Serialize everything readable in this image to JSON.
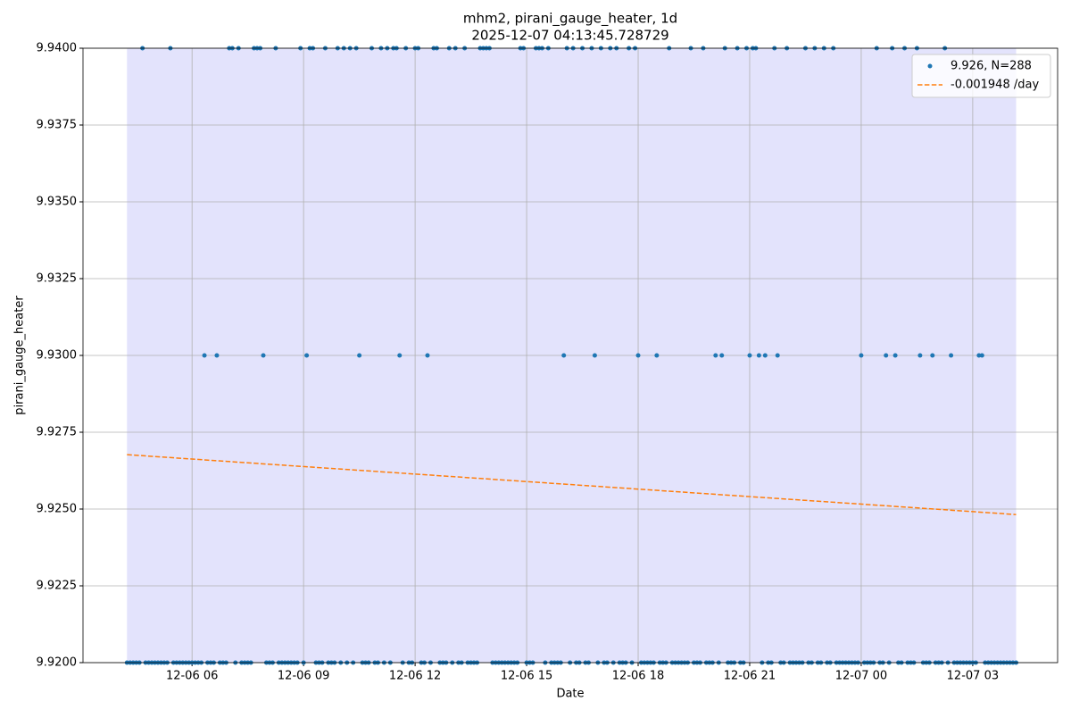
{
  "chart_data": {
    "type": "scatter",
    "title": "mhm2, pirani_gauge_heater, 1d",
    "subtitle": "2025-12-07 04:13:45.728729",
    "x_label": "Date",
    "y_label": "pirani_gauge_heater",
    "xlim": [
      "12-06 03:04",
      "12-07 05:17"
    ],
    "xticks": [
      {
        "value": "12-06 06:00",
        "label": "12-06 06"
      },
      {
        "value": "12-06 09:00",
        "label": "12-06 09"
      },
      {
        "value": "12-06 12:00",
        "label": "12-06 12"
      },
      {
        "value": "12-06 15:00",
        "label": "12-06 15"
      },
      {
        "value": "12-06 18:00",
        "label": "12-06 18"
      },
      {
        "value": "12-06 21:00",
        "label": "12-06 21"
      },
      {
        "value": "12-07 00:00",
        "label": "12-07 00"
      },
      {
        "value": "12-07 03:00",
        "label": "12-07 03"
      }
    ],
    "ylim": [
      9.92,
      9.94
    ],
    "yticks": [
      {
        "value": 9.92,
        "label": "9.9200"
      },
      {
        "value": 9.9225,
        "label": "9.9225"
      },
      {
        "value": 9.925,
        "label": "9.9250"
      },
      {
        "value": 9.9275,
        "label": "9.9275"
      },
      {
        "value": 9.93,
        "label": "9.9300"
      },
      {
        "value": 9.9325,
        "label": "9.9325"
      },
      {
        "value": 9.935,
        "label": "9.9350"
      },
      {
        "value": 9.9375,
        "label": "9.9375"
      },
      {
        "value": 9.94,
        "label": "9.9400"
      }
    ],
    "grid": true,
    "legend": "upper right",
    "span_color": "#e3e3fc",
    "series": [
      {
        "name": "9.926, N=288",
        "color": "#1f77b4",
        "marker": "o",
        "x": [
          "12-06 04:15",
          "12-06 04:20",
          "12-06 04:25",
          "12-06 04:30",
          "12-06 04:35",
          "12-06 04:40",
          "12-06 04:45",
          "12-06 04:50",
          "12-06 04:55",
          "12-06 05:00",
          "12-06 05:05",
          "12-06 05:10",
          "12-06 05:15",
          "12-06 05:20",
          "12-06 05:25",
          "12-06 05:30",
          "12-06 05:35",
          "12-06 05:40",
          "12-06 05:45",
          "12-06 05:50",
          "12-06 05:55",
          "12-06 06:00",
          "12-06 06:05",
          "12-06 06:10",
          "12-06 06:15",
          "12-06 06:20",
          "12-06 06:25",
          "12-06 06:30",
          "12-06 06:35",
          "12-06 06:40",
          "12-06 06:45",
          "12-06 06:50",
          "12-06 06:55",
          "12-06 07:00",
          "12-06 07:05",
          "12-06 07:10",
          "12-06 07:15",
          "12-06 07:20",
          "12-06 07:25",
          "12-06 07:30",
          "12-06 07:35",
          "12-06 07:40",
          "12-06 07:45",
          "12-06 07:50",
          "12-06 07:55",
          "12-06 08:00",
          "12-06 08:05",
          "12-06 08:10",
          "12-06 08:15",
          "12-06 08:20",
          "12-06 08:25",
          "12-06 08:30",
          "12-06 08:35",
          "12-06 08:40",
          "12-06 08:45",
          "12-06 08:50",
          "12-06 08:55",
          "12-06 09:00",
          "12-06 09:05",
          "12-06 09:10",
          "12-06 09:15",
          "12-06 09:20",
          "12-06 09:25",
          "12-06 09:30",
          "12-06 09:35",
          "12-06 09:40",
          "12-06 09:45",
          "12-06 09:50",
          "12-06 09:55",
          "12-06 10:00",
          "12-06 10:05",
          "12-06 10:10",
          "12-06 10:15",
          "12-06 10:20",
          "12-06 10:25",
          "12-06 10:30",
          "12-06 10:35",
          "12-06 10:40",
          "12-06 10:45",
          "12-06 10:50",
          "12-06 10:55",
          "12-06 11:00",
          "12-06 11:05",
          "12-06 11:10",
          "12-06 11:15",
          "12-06 11:20",
          "12-06 11:25",
          "12-06 11:30",
          "12-06 11:35",
          "12-06 11:40",
          "12-06 11:45",
          "12-06 11:50",
          "12-06 11:55",
          "12-06 12:00",
          "12-06 12:05",
          "12-06 12:10",
          "12-06 12:15",
          "12-06 12:20",
          "12-06 12:25",
          "12-06 12:30",
          "12-06 12:35",
          "12-06 12:40",
          "12-06 12:45",
          "12-06 12:50",
          "12-06 12:55",
          "12-06 13:00",
          "12-06 13:05",
          "12-06 13:10",
          "12-06 13:15",
          "12-06 13:20",
          "12-06 13:25",
          "12-06 13:30",
          "12-06 13:35",
          "12-06 13:40",
          "12-06 13:45",
          "12-06 13:50",
          "12-06 13:55",
          "12-06 14:00",
          "12-06 14:05",
          "12-06 14:10",
          "12-06 14:15",
          "12-06 14:20",
          "12-06 14:25",
          "12-06 14:30",
          "12-06 14:35",
          "12-06 14:40",
          "12-06 14:45",
          "12-06 14:50",
          "12-06 14:55",
          "12-06 15:00",
          "12-06 15:05",
          "12-06 15:10",
          "12-06 15:15",
          "12-06 15:20",
          "12-06 15:25",
          "12-06 15:30",
          "12-06 15:35",
          "12-06 15:40",
          "12-06 15:45",
          "12-06 15:50",
          "12-06 15:55",
          "12-06 16:00",
          "12-06 16:05",
          "12-06 16:10",
          "12-06 16:15",
          "12-06 16:20",
          "12-06 16:25",
          "12-06 16:30",
          "12-06 16:35",
          "12-06 16:40",
          "12-06 16:45",
          "12-06 16:50",
          "12-06 16:55",
          "12-06 17:00",
          "12-06 17:05",
          "12-06 17:10",
          "12-06 17:15",
          "12-06 17:20",
          "12-06 17:25",
          "12-06 17:30",
          "12-06 17:35",
          "12-06 17:40",
          "12-06 17:45",
          "12-06 17:50",
          "12-06 17:55",
          "12-06 18:00",
          "12-06 18:05",
          "12-06 18:10",
          "12-06 18:15",
          "12-06 18:20",
          "12-06 18:25",
          "12-06 18:30",
          "12-06 18:35",
          "12-06 18:40",
          "12-06 18:45",
          "12-06 18:50",
          "12-06 18:55",
          "12-06 19:00",
          "12-06 19:05",
          "12-06 19:10",
          "12-06 19:15",
          "12-06 19:20",
          "12-06 19:25",
          "12-06 19:30",
          "12-06 19:35",
          "12-06 19:40",
          "12-06 19:45",
          "12-06 19:50",
          "12-06 19:55",
          "12-06 20:00",
          "12-06 20:05",
          "12-06 20:10",
          "12-06 20:15",
          "12-06 20:20",
          "12-06 20:25",
          "12-06 20:30",
          "12-06 20:35",
          "12-06 20:40",
          "12-06 20:45",
          "12-06 20:50",
          "12-06 20:55",
          "12-06 21:00",
          "12-06 21:05",
          "12-06 21:10",
          "12-06 21:15",
          "12-06 21:20",
          "12-06 21:25",
          "12-06 21:30",
          "12-06 21:35",
          "12-06 21:40",
          "12-06 21:45",
          "12-06 21:50",
          "12-06 21:55",
          "12-06 22:00",
          "12-06 22:05",
          "12-06 22:10",
          "12-06 22:15",
          "12-06 22:20",
          "12-06 22:25",
          "12-06 22:30",
          "12-06 22:35",
          "12-06 22:40",
          "12-06 22:45",
          "12-06 22:50",
          "12-06 22:55",
          "12-06 23:00",
          "12-06 23:05",
          "12-06 23:10",
          "12-06 23:15",
          "12-06 23:20",
          "12-06 23:25",
          "12-06 23:30",
          "12-06 23:35",
          "12-06 23:40",
          "12-06 23:45",
          "12-06 23:50",
          "12-06 23:55",
          "12-07 00:00",
          "12-07 00:05",
          "12-07 00:10",
          "12-07 00:15",
          "12-07 00:20",
          "12-07 00:25",
          "12-07 00:30",
          "12-07 00:35",
          "12-07 00:40",
          "12-07 00:45",
          "12-07 00:50",
          "12-07 00:55",
          "12-07 01:00",
          "12-07 01:05",
          "12-07 01:10",
          "12-07 01:15",
          "12-07 01:20",
          "12-07 01:25",
          "12-07 01:30",
          "12-07 01:35",
          "12-07 01:40",
          "12-07 01:45",
          "12-07 01:50",
          "12-07 01:55",
          "12-07 02:00",
          "12-07 02:05",
          "12-07 02:10",
          "12-07 02:15",
          "12-07 02:20",
          "12-07 02:25",
          "12-07 02:30",
          "12-07 02:35",
          "12-07 02:40",
          "12-07 02:45",
          "12-07 02:50",
          "12-07 02:55",
          "12-07 03:00",
          "12-07 03:05",
          "12-07 03:10",
          "12-07 03:15",
          "12-07 03:20",
          "12-07 03:25",
          "12-07 03:30",
          "12-07 03:35",
          "12-07 03:40",
          "12-07 03:45",
          "12-07 03:50",
          "12-07 03:55",
          "12-07 04:00",
          "12-07 04:05",
          "12-07 04:10"
        ],
        "values": [
          9.92,
          9.92,
          9.92,
          9.92,
          9.92,
          9.94,
          9.92,
          9.92,
          9.92,
          9.92,
          9.92,
          9.92,
          9.92,
          9.92,
          9.94,
          9.92,
          9.92,
          9.92,
          9.92,
          9.92,
          9.92,
          9.92,
          9.92,
          9.92,
          9.92,
          9.93,
          9.92,
          9.92,
          9.92,
          9.93,
          9.92,
          9.92,
          9.92,
          9.94,
          9.94,
          9.92,
          9.94,
          9.92,
          9.92,
          9.92,
          9.92,
          9.94,
          9.94,
          9.94,
          9.93,
          9.92,
          9.92,
          9.92,
          9.94,
          9.92,
          9.92,
          9.92,
          9.92,
          9.92,
          9.92,
          9.92,
          9.94,
          9.92,
          9.93,
          9.94,
          9.94,
          9.92,
          9.92,
          9.92,
          9.94,
          9.92,
          9.92,
          9.92,
          9.94,
          9.92,
          9.94,
          9.92,
          9.94,
          9.92,
          9.94,
          9.93,
          9.92,
          9.92,
          9.92,
          9.94,
          9.92,
          9.92,
          9.94,
          9.92,
          9.94,
          9.92,
          9.94,
          9.94,
          9.93,
          9.92,
          9.94,
          9.92,
          9.92,
          9.94,
          9.94,
          9.92,
          9.92,
          9.93,
          9.92,
          9.94,
          9.94,
          9.92,
          9.92,
          9.92,
          9.94,
          9.92,
          9.94,
          9.92,
          9.92,
          9.94,
          9.92,
          9.92,
          9.92,
          9.92,
          9.94,
          9.94,
          9.94,
          9.94,
          9.92,
          9.92,
          9.92,
          9.92,
          9.92,
          9.92,
          9.92,
          9.92,
          9.92,
          9.94,
          9.94,
          9.92,
          9.92,
          9.92,
          9.94,
          9.94,
          9.94,
          9.92,
          9.94,
          9.92,
          9.92,
          9.92,
          9.92,
          9.93,
          9.94,
          9.92,
          9.94,
          9.92,
          9.92,
          9.94,
          9.92,
          9.92,
          9.94,
          9.93,
          9.92,
          9.94,
          9.92,
          9.92,
          9.94,
          9.92,
          9.94,
          9.92,
          9.92,
          9.92,
          9.94,
          9.92,
          9.94,
          9.93,
          9.92,
          9.92,
          9.92,
          9.92,
          9.92,
          9.93,
          9.92,
          9.92,
          9.92,
          9.94,
          9.92,
          9.92,
          9.92,
          9.92,
          9.92,
          9.92,
          9.94,
          9.92,
          9.92,
          9.92,
          9.94,
          9.92,
          9.92,
          9.92,
          9.93,
          9.92,
          9.93,
          9.94,
          9.92,
          9.92,
          9.92,
          9.94,
          9.92,
          9.92,
          9.94,
          9.93,
          9.94,
          9.94,
          9.93,
          9.92,
          9.93,
          9.92,
          9.92,
          9.94,
          9.93,
          9.92,
          9.92,
          9.94,
          9.92,
          9.92,
          9.92,
          9.92,
          9.92,
          9.94,
          9.92,
          9.92,
          9.94,
          9.92,
          9.92,
          9.94,
          9.92,
          9.92,
          9.94,
          9.92,
          9.92,
          9.92,
          9.92,
          9.92,
          9.92,
          9.92,
          9.92,
          9.93,
          9.92,
          9.92,
          9.92,
          9.92,
          9.94,
          9.92,
          9.92,
          9.93,
          9.92,
          9.94,
          9.93,
          9.92,
          9.92,
          9.94,
          9.92,
          9.92,
          9.92,
          9.94,
          9.93,
          9.92,
          9.92,
          9.92,
          9.93,
          9.92,
          9.92,
          9.92,
          9.94,
          9.92,
          9.93,
          9.92,
          9.92,
          9.92,
          9.92,
          9.92,
          9.92,
          9.92,
          9.92,
          9.93,
          9.93,
          9.92,
          9.92,
          9.92,
          9.92,
          9.92,
          9.92,
          9.92,
          9.92,
          9.92,
          9.92,
          9.92
        ]
      },
      {
        "name": "-0.001948 /day",
        "color": "#ff7f0e",
        "linestyle": "--",
        "x": [
          "12-06 04:15",
          "12-07 04:10"
        ],
        "values": [
          9.92677,
          9.92482
        ]
      }
    ]
  }
}
